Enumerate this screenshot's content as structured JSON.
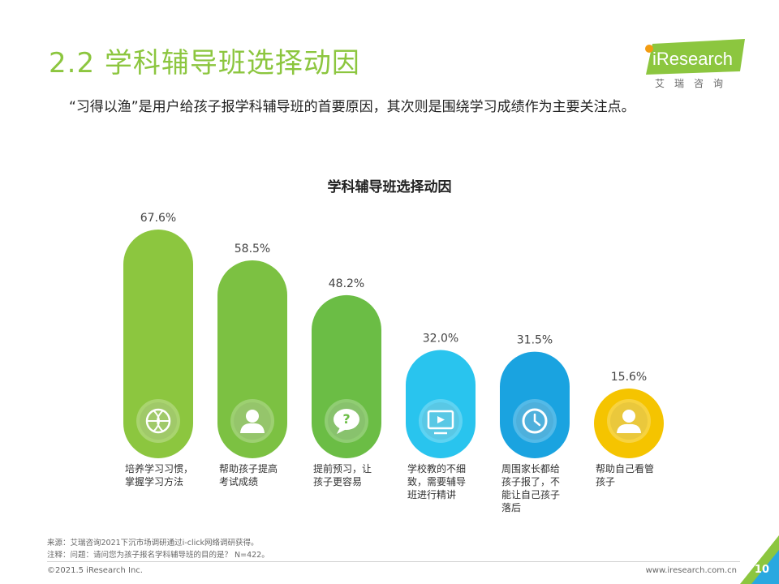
{
  "header": {
    "title": "2.2 学科辅导班选择动因",
    "subtitle": "“习得以渔”是用户给孩子报学科辅导班的首要原因，其次则是围绕学习成绩作为主要关注点。"
  },
  "logo": {
    "brand": "iResearch",
    "cn_name": "艾瑞咨询"
  },
  "chart_data": {
    "type": "bar",
    "title": "学科辅导班选择动因",
    "categories": [
      "培养学习习惯，掌握学习方法",
      "帮助孩子提高考试成绩",
      "提前预习，让孩子更容易",
      "学校教的不细致，需要辅导班进行精讲",
      "周围家长都给孩子报了，不能让自己孩子落后",
      "帮助自己看管孩子"
    ],
    "category_lines": [
      [
        "培养学习习惯，",
        "掌握学习方法"
      ],
      [
        "帮助孩子提高",
        "考试成绩"
      ],
      [
        "提前预习，让",
        "孩子更容易"
      ],
      [
        "学校教的不细",
        "致，需要辅导",
        "班进行精讲"
      ],
      [
        "周围家长都给",
        "孩子报了，不",
        "能让自己孩子",
        "落后"
      ],
      [
        "帮助自己看管",
        "孩子"
      ]
    ],
    "values": [
      67.6,
      58.5,
      48.2,
      32.0,
      31.5,
      15.6
    ],
    "value_labels": [
      "67.6%",
      "58.5%",
      "48.2%",
      "32.0%",
      "31.5%",
      "15.6%"
    ],
    "unit": "%",
    "ylim": [
      0,
      100
    ],
    "colors": [
      "#8cc63f",
      "#7cc142",
      "#6bbd45",
      "#29c4ee",
      "#1aa3e0",
      "#f5c400"
    ],
    "icons": [
      "basketball-icon",
      "user-icon",
      "question-bubble-icon",
      "monitor-play-icon",
      "clock-icon",
      "person-icon"
    ]
  },
  "footer": {
    "source": "来源：艾瑞咨询2021下沉市场调研通过i-click网络调研获得。",
    "note": "注释：问题：请问您为孩子报名学科辅导班的目的是？ N=422。",
    "copyright": "©2021.5 iResearch Inc.",
    "website": "www.iresearch.com.cn",
    "page": "10"
  }
}
